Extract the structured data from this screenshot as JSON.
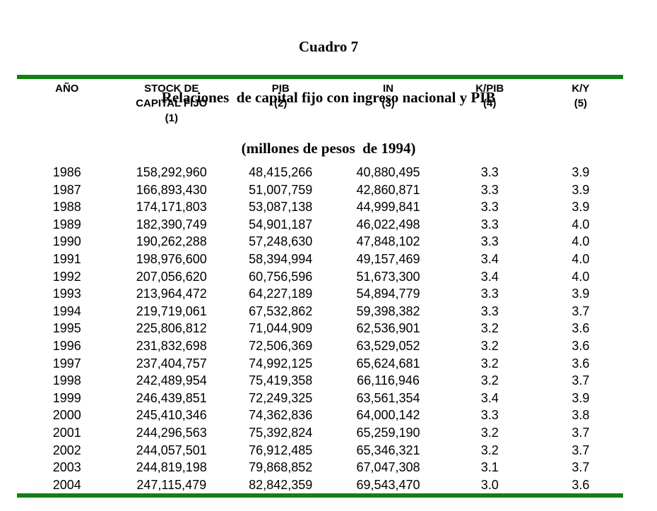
{
  "title": {
    "line1": "Cuadro 7",
    "line2": "Relaciones  de capital fijo con ingreso nacional y PIB",
    "line3": "(millones de pesos  de 1994)"
  },
  "colors": {
    "rule_green": "#118111",
    "text": "#000000",
    "background": "#ffffff"
  },
  "table": {
    "columns": [
      {
        "id": "ano",
        "lines": [
          "AÑO"
        ]
      },
      {
        "id": "stock",
        "lines": [
          "STOCK DE",
          "CAPITAL FIJO",
          "(1)"
        ]
      },
      {
        "id": "pib",
        "lines": [
          "PIB",
          "(2)"
        ]
      },
      {
        "id": "in",
        "lines": [
          "IN",
          "(3)"
        ]
      },
      {
        "id": "kpib",
        "lines": [
          "K/PIB",
          "(4)"
        ]
      },
      {
        "id": "ky",
        "lines": [
          "K/Y",
          "(5)"
        ]
      }
    ],
    "rows": [
      [
        "1986",
        "158,292,960",
        "48,415,266",
        "40,880,495",
        "3.3",
        "3.9"
      ],
      [
        "1987",
        "166,893,430",
        "51,007,759",
        "42,860,871",
        "3.3",
        "3.9"
      ],
      [
        "1988",
        "174,171,803",
        "53,087,138",
        "44,999,841",
        "3.3",
        "3.9"
      ],
      [
        "1989",
        "182,390,749",
        "54,901,187",
        "46,022,498",
        "3.3",
        "4.0"
      ],
      [
        "1990",
        "190,262,288",
        "57,248,630",
        "47,848,102",
        "3.3",
        "4.0"
      ],
      [
        "1991",
        "198,976,600",
        "58,394,994",
        "49,157,469",
        "3.4",
        "4.0"
      ],
      [
        "1992",
        "207,056,620",
        "60,756,596",
        "51,673,300",
        "3.4",
        "4.0"
      ],
      [
        "1993",
        "213,964,472",
        "64,227,189",
        "54,894,779",
        "3.3",
        "3.9"
      ],
      [
        "1994",
        "219,719,061",
        "67,532,862",
        "59,398,382",
        "3.3",
        "3.7"
      ],
      [
        "1995",
        "225,806,812",
        "71,044,909",
        "62,536,901",
        "3.2",
        "3.6"
      ],
      [
        "1996",
        "231,832,698",
        "72,506,369",
        "63,529,052",
        "3.2",
        "3.6"
      ],
      [
        "1997",
        "237,404,757",
        "74,992,125",
        "65,624,681",
        "3.2",
        "3.6"
      ],
      [
        "1998",
        "242,489,954",
        "75,419,358",
        "66,116,946",
        "3.2",
        "3.7"
      ],
      [
        "1999",
        "246,439,851",
        "72,249,325",
        "63,561,354",
        "3.4",
        "3.9"
      ],
      [
        "2000",
        "245,410,346",
        "74,362,836",
        "64,000,142",
        "3.3",
        "3.8"
      ],
      [
        "2001",
        "244,296,563",
        "75,392,824",
        "65,259,190",
        "3.2",
        "3.7"
      ],
      [
        "2002",
        "244,057,501",
        "76,912,485",
        "65,346,321",
        "3.2",
        "3.7"
      ],
      [
        "2003",
        "244,819,198",
        "79,868,852",
        "67,047,308",
        "3.1",
        "3.7"
      ],
      [
        "2004",
        "247,115,479",
        "82,842,359",
        "69,543,470",
        "3.0",
        "3.6"
      ]
    ]
  }
}
